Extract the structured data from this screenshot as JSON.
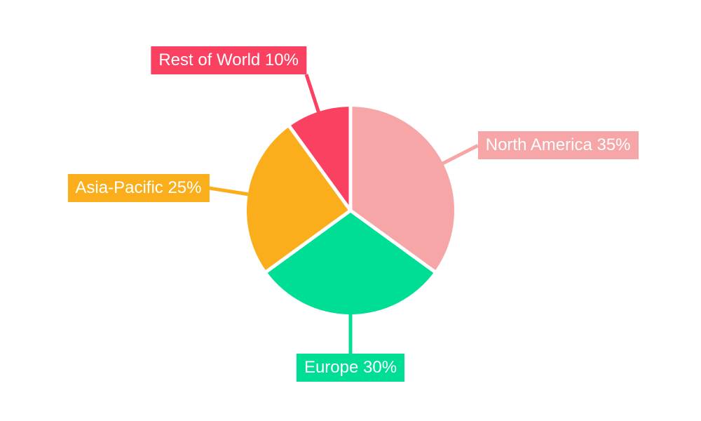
{
  "chart_data": {
    "type": "pie",
    "title": "",
    "start_angle_deg": 0,
    "direction": "clockwise",
    "value_suffix": "%",
    "slices": [
      {
        "label": "North America",
        "value": 35,
        "color": "#F7A6A8"
      },
      {
        "label": "Europe",
        "value": 30,
        "color": "#00DD94"
      },
      {
        "label": "Asia-Pacific",
        "value": 25,
        "color": "#FBAE1B"
      },
      {
        "label": "Rest of World",
        "value": 10,
        "color": "#FB4161"
      }
    ],
    "labels": [
      "North America 35%",
      "Europe 30%",
      "Asia-Pacific 25%",
      "Rest of World 10%"
    ],
    "label_text_color": "#FFFFFF",
    "separator_color": "#FFFFFF",
    "background_color": "#FFFFFF",
    "legend_position": "none",
    "grid": false
  }
}
